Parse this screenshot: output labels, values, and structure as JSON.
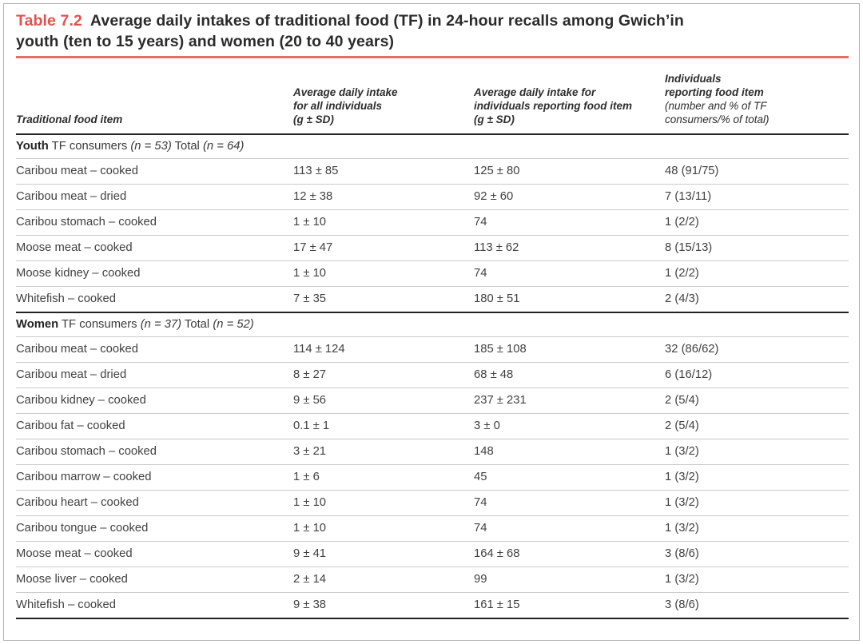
{
  "page": {
    "background": "#ffffff",
    "frame_border_color": "#b3b3b3",
    "accent_red": "#e0534e",
    "rule_red": "#ea6d65",
    "section_line_color": "#222222",
    "row_line_color": "#cbcbcb"
  },
  "title": {
    "label": "Table 7.2",
    "line1": "Average daily intakes of traditional food (TF) in 24-hour recalls among Gwich’in",
    "line2": "youth (ten to 15 years) and women (20 to 40 years)"
  },
  "table": {
    "headers": {
      "col1": "Traditional food item",
      "col2": [
        "Average daily intake",
        "for all individuals",
        "(g ± SD)"
      ],
      "col3": [
        "Average daily intake for",
        "individuals reporting food item",
        "(g ± SD)"
      ],
      "col4_bold": [
        "Individuals",
        "reporting food item"
      ],
      "col4_plain": [
        "(number and % of TF",
        "consumers/% of total)"
      ]
    },
    "sections": [
      {
        "label_bold": "Youth",
        "label_rest": " TF consumers ",
        "n1": "(n = 53)",
        "label_mid": " Total ",
        "n2": "(n = 64)",
        "rows": [
          {
            "item": "Caribou meat – cooked",
            "all": "113 ± 85",
            "reporting": "125 ± 80",
            "individuals": "48 (91/75)"
          },
          {
            "item": "Caribou meat – dried",
            "all": "12 ± 38",
            "reporting": "92 ± 60",
            "individuals": "7 (13/11)"
          },
          {
            "item": "Caribou stomach – cooked",
            "all": "1 ± 10",
            "reporting": "74",
            "individuals": "1 (2/2)"
          },
          {
            "item": "Moose meat – cooked",
            "all": "17 ± 47",
            "reporting": "113 ± 62",
            "individuals": "8 (15/13)"
          },
          {
            "item": "Moose kidney – cooked",
            "all": "1 ± 10",
            "reporting": "74",
            "individuals": "1 (2/2)"
          },
          {
            "item": "Whitefish – cooked",
            "all": "7 ± 35",
            "reporting": "180 ± 51",
            "individuals": "2 (4/3)"
          }
        ]
      },
      {
        "label_bold": "Women",
        "label_rest": " TF consumers ",
        "n1": "(n = 37)",
        "label_mid": " Total ",
        "n2": "(n = 52)",
        "rows": [
          {
            "item": "Caribou meat – cooked",
            "all": "114 ± 124",
            "reporting": "185 ± 108",
            "individuals": "32 (86/62)"
          },
          {
            "item": "Caribou meat – dried",
            "all": "8 ± 27",
            "reporting": "68 ± 48",
            "individuals": "6 (16/12)"
          },
          {
            "item": "Caribou kidney – cooked",
            "all": "9 ± 56",
            "reporting": "237 ± 231",
            "individuals": "2 (5/4)"
          },
          {
            "item": "Caribou fat – cooked",
            "all": "0.1 ± 1",
            "reporting": "3 ± 0",
            "individuals": "2 (5/4)"
          },
          {
            "item": "Caribou stomach – cooked",
            "all": "3 ± 21",
            "reporting": "148",
            "individuals": "1 (3/2)"
          },
          {
            "item": "Caribou marrow – cooked",
            "all": "1 ± 6",
            "reporting": "45",
            "individuals": "1 (3/2)"
          },
          {
            "item": "Caribou heart – cooked",
            "all": "1 ± 10",
            "reporting": "74",
            "individuals": "1 (3/2)"
          },
          {
            "item": "Caribou tongue – cooked",
            "all": "1 ± 10",
            "reporting": "74",
            "individuals": "1 (3/2)"
          },
          {
            "item": "Moose meat – cooked",
            "all": "9 ± 41",
            "reporting": "164 ± 68",
            "individuals": "3 (8/6)"
          },
          {
            "item": "Moose liver – cooked",
            "all": "2 ± 14",
            "reporting": "99",
            "individuals": "1 (3/2)"
          },
          {
            "item": "Whitefish – cooked",
            "all": "9 ± 38",
            "reporting": "161 ± 15",
            "individuals": "3 (8/6)"
          }
        ]
      }
    ]
  }
}
